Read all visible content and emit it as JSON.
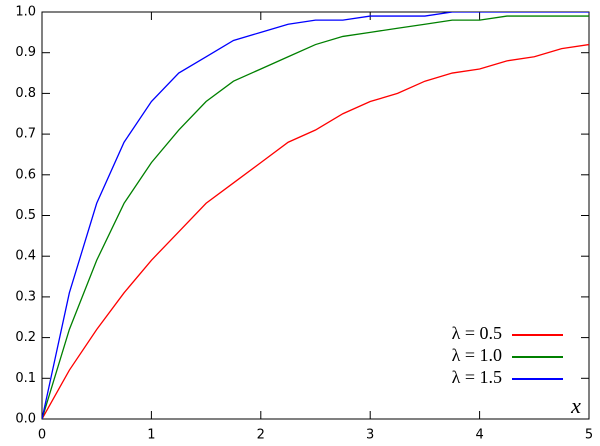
{
  "chart_data": {
    "type": "line",
    "x_label": "x",
    "x": [
      0,
      0.25,
      0.5,
      0.75,
      1,
      1.25,
      1.5,
      1.75,
      2,
      2.25,
      2.5,
      2.75,
      3,
      3.25,
      3.5,
      3.75,
      4,
      4.25,
      4.5,
      4.75,
      5
    ],
    "series": [
      {
        "name": "λ = 0.5",
        "color": "#ff0000",
        "values": [
          0,
          0.12,
          0.22,
          0.31,
          0.39,
          0.46,
          0.53,
          0.58,
          0.63,
          0.68,
          0.71,
          0.75,
          0.78,
          0.8,
          0.83,
          0.85,
          0.86,
          0.88,
          0.89,
          0.91,
          0.92
        ]
      },
      {
        "name": "λ = 1.0",
        "color": "#008000",
        "values": [
          0,
          0.22,
          0.39,
          0.53,
          0.63,
          0.71,
          0.78,
          0.83,
          0.86,
          0.89,
          0.92,
          0.94,
          0.95,
          0.96,
          0.97,
          0.98,
          0.98,
          0.99,
          0.99,
          0.99,
          0.99
        ]
      },
      {
        "name": "λ = 1.5",
        "color": "#0000ff",
        "values": [
          0,
          0.31,
          0.53,
          0.68,
          0.78,
          0.85,
          0.89,
          0.93,
          0.95,
          0.97,
          0.98,
          0.98,
          0.99,
          0.99,
          0.99,
          1,
          1,
          1,
          1,
          1,
          1
        ]
      }
    ],
    "xlim": [
      0,
      5
    ],
    "xticks": [
      0,
      1,
      2,
      3,
      4,
      5
    ],
    "ylim": [
      0,
      1
    ],
    "yticks": [
      {
        "value": 0,
        "label": "0.0"
      },
      0.1,
      0.2,
      0.3,
      0.4,
      0.5,
      0.6,
      0.7,
      0.8,
      0.9,
      {
        "value": 1,
        "label": "1.0"
      }
    ],
    "grid": false,
    "legend": "lower right"
  }
}
